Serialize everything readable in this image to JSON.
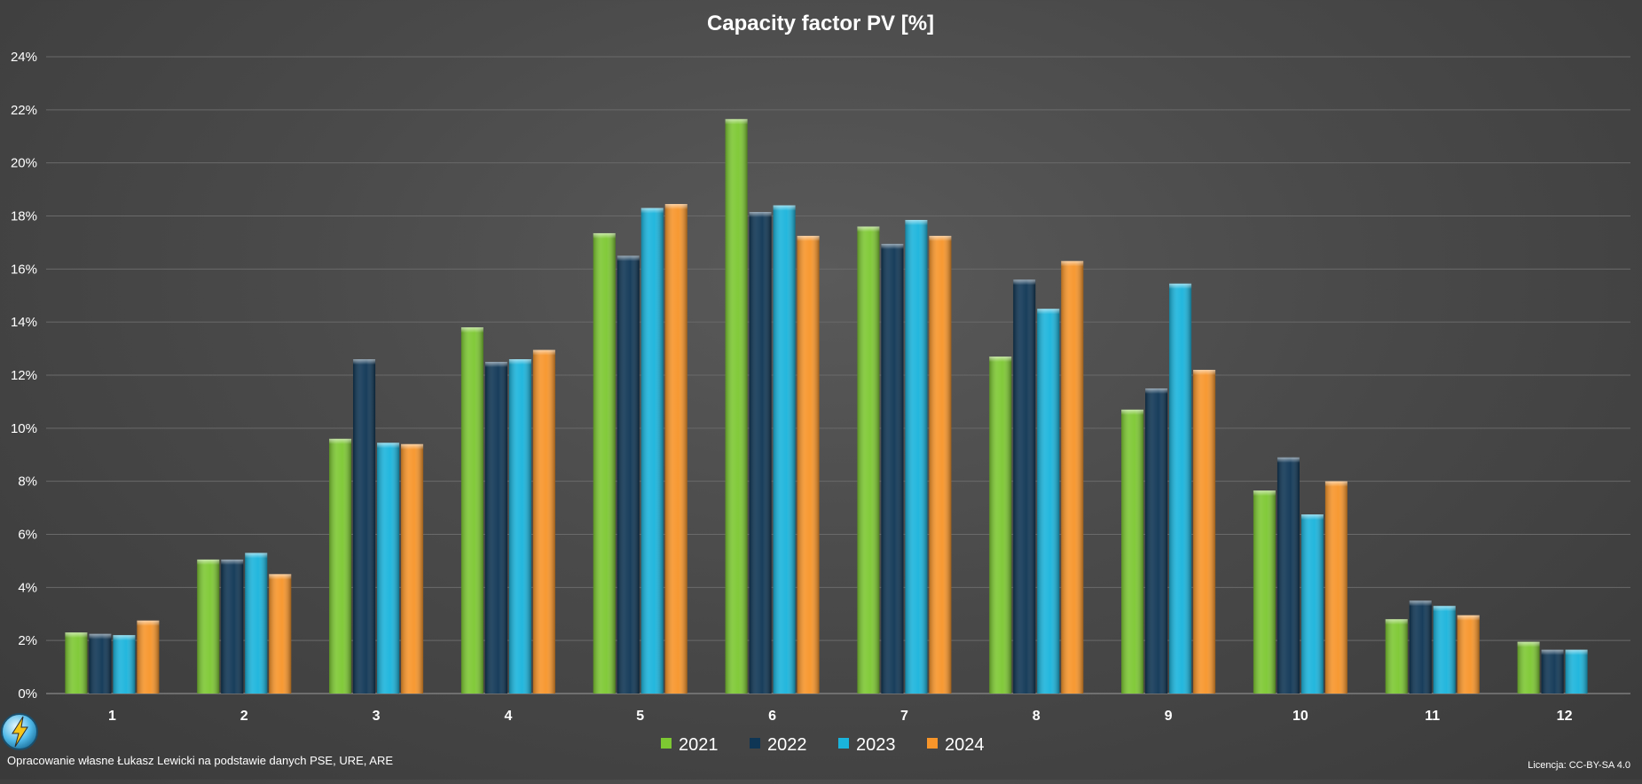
{
  "chart_data": {
    "type": "bar",
    "title": "Capacity factor PV [%]",
    "xlabel": "",
    "ylabel": "",
    "categories": [
      "1",
      "2",
      "3",
      "4",
      "5",
      "6",
      "7",
      "8",
      "9",
      "10",
      "11",
      "12"
    ],
    "series": [
      {
        "name": "2021",
        "color": "#7dc832",
        "values": [
          2.3,
          5.05,
          9.6,
          13.8,
          17.35,
          21.65,
          17.6,
          12.7,
          10.7,
          7.65,
          2.8,
          1.95
        ]
      },
      {
        "name": "2022",
        "color": "#0f3655",
        "values": [
          2.25,
          5.05,
          12.6,
          12.5,
          16.5,
          18.15,
          16.95,
          15.6,
          11.5,
          8.9,
          3.5,
          1.65
        ]
      },
      {
        "name": "2023",
        "color": "#1ab4dc",
        "values": [
          2.2,
          5.3,
          9.45,
          12.6,
          18.3,
          18.4,
          17.85,
          14.5,
          15.45,
          6.75,
          3.3,
          1.65
        ]
      },
      {
        "name": "2024",
        "color": "#f7952a",
        "values": [
          2.75,
          4.5,
          9.4,
          12.95,
          18.45,
          17.25,
          17.25,
          16.3,
          12.2,
          8.0,
          2.95,
          null
        ]
      }
    ],
    "ylim": [
      0,
      24
    ],
    "yticks": [
      0,
      2,
      4,
      6,
      8,
      10,
      12,
      14,
      16,
      18,
      20,
      22,
      24
    ],
    "y_unit": "%",
    "grid": true,
    "legend_position": "bottom"
  },
  "footer": {
    "source": "Opracowanie własne Łukasz Lewicki na podstawie danych PSE, URE, ARE",
    "license": "Licencja: CC-BY-SA 4.0"
  },
  "logo": {
    "icon": "lightning-bolt-icon"
  }
}
